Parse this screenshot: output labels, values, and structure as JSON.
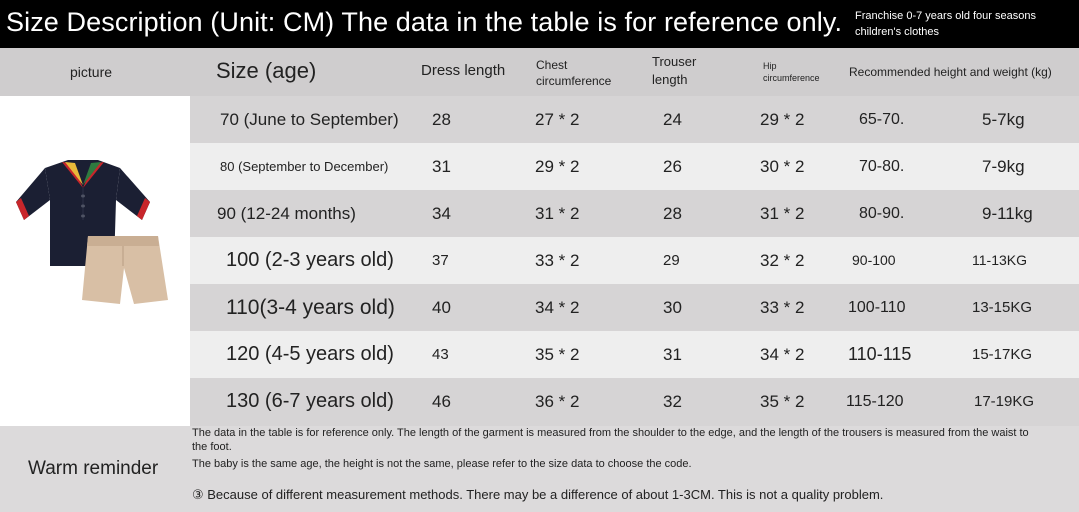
{
  "banner": {
    "title": "Size Description (Unit: CM) The data in the table is for reference only.",
    "subtitle": "Franchise 0-7 years old four seasons children's clothes"
  },
  "header": {
    "picture": "picture",
    "size": "Size (age)",
    "dress_length": "Dress length",
    "chest": "Chest circumference",
    "trouser": "Trouser length",
    "hip": "Hip circumference",
    "recommended": "Recommended height and weight (kg)"
  },
  "rows": [
    {
      "size": "70 (June to September)",
      "dress": "28",
      "chest": "27 * 2",
      "trouser": "24",
      "hip": "29 * 2",
      "height": "65-70.",
      "weight": "5-7kg"
    },
    {
      "size": "80 (September to December)",
      "dress": "31",
      "chest": "29 * 2",
      "trouser": "26",
      "hip": "30 * 2",
      "height": "70-80.",
      "weight": "7-9kg"
    },
    {
      "size": "90 (12-24 months)",
      "dress": "34",
      "chest": "31 * 2",
      "trouser": "28",
      "hip": "31 * 2",
      "height": "80-90.",
      "weight": "9-11kg"
    },
    {
      "size": "100 (2-3 years old)",
      "dress": "37",
      "chest": "33 * 2",
      "trouser": "29",
      "hip": "32 * 2",
      "height": "90-100",
      "weight": "11-13KG"
    },
    {
      "size": "110(3-4 years old)",
      "dress": "40",
      "chest": "34 * 2",
      "trouser": "30",
      "hip": "33 * 2",
      "height": "100-110",
      "weight": "13-15KG"
    },
    {
      "size": "120 (4-5 years old)",
      "dress": "43",
      "chest": "35 * 2",
      "trouser": "31",
      "hip": "34 * 2",
      "height": "110-115",
      "weight": "15-17KG"
    },
    {
      "size": "130 (6-7 years old)",
      "dress": "46",
      "chest": "36 * 2",
      "trouser": "32",
      "hip": "35 * 2",
      "height": "115-120",
      "weight": "17-19KG"
    }
  ],
  "footer": {
    "warm": "Warm reminder",
    "note1": "The data in the table is for reference only. The length of the garment is measured from the shoulder to the edge, and the length of the trousers is measured from the waist to the foot.",
    "note2": "The baby is the same age, the height is not the same, please refer to the size data to choose the code.",
    "note3": "③ Because of different measurement methods. There may be a difference of about 1-3CM. This is not a quality problem."
  },
  "colors": {
    "polo": "#1b1f33",
    "collar_red": "#c8262b",
    "shorts": "#d8bfa5"
  }
}
